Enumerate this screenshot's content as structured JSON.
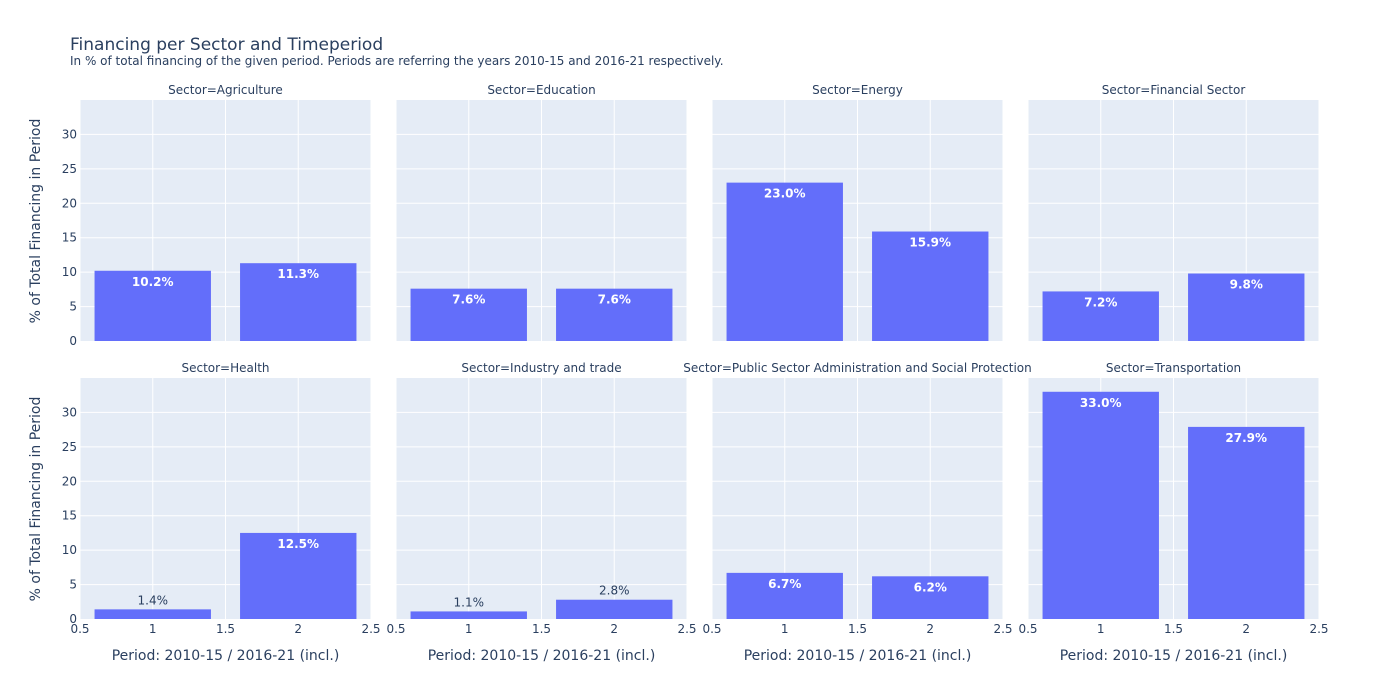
{
  "chart_data": {
    "type": "bar",
    "title": "Financing per Sector and Timeperiod",
    "subtitle": "In % of total financing of the given period. Periods are referring the years 2010-15 and 2016-21 respectively.",
    "xlabel": "Period: 2010-15 / 2016-21 (incl.)",
    "ylabel": "% of Total Financing in Period",
    "xlim": [
      0.5,
      2.5
    ],
    "ylim": [
      0,
      35
    ],
    "x_ticks": [
      "0.5",
      "1",
      "1.5",
      "2",
      "2.5"
    ],
    "y_ticks": [
      0,
      5,
      10,
      15,
      20,
      25,
      30
    ],
    "grid": true,
    "bar_color": "#636efa",
    "plot_bg": "#e5ecf6",
    "facets": [
      {
        "title": "Sector=Agriculture",
        "x": [
          1,
          2
        ],
        "values": [
          10.2,
          11.3
        ],
        "labels": [
          "10.2%",
          "11.3%"
        ]
      },
      {
        "title": "Sector=Education",
        "x": [
          1,
          2
        ],
        "values": [
          7.6,
          7.6
        ],
        "labels": [
          "7.6%",
          "7.6%"
        ]
      },
      {
        "title": "Sector=Energy",
        "x": [
          1,
          2
        ],
        "values": [
          23.0,
          15.9
        ],
        "labels": [
          "23.0%",
          "15.9%"
        ]
      },
      {
        "title": "Sector=Financial Sector",
        "x": [
          1,
          2
        ],
        "values": [
          7.2,
          9.8
        ],
        "labels": [
          "7.2%",
          "9.8%"
        ]
      },
      {
        "title": "Sector=Health",
        "x": [
          1,
          2
        ],
        "values": [
          1.4,
          12.5
        ],
        "labels": [
          "1.4%",
          "12.5%"
        ]
      },
      {
        "title": "Sector=Industry and trade",
        "x": [
          1,
          2
        ],
        "values": [
          1.1,
          2.8
        ],
        "labels": [
          "1.1%",
          "2.8%"
        ]
      },
      {
        "title": "Sector=Public Sector Administration and Social Protection",
        "x": [
          1,
          2
        ],
        "values": [
          6.7,
          6.2
        ],
        "labels": [
          "6.7%",
          "6.2%"
        ]
      },
      {
        "title": "Sector=Transportation",
        "x": [
          1,
          2
        ],
        "values": [
          33.0,
          27.9
        ],
        "labels": [
          "33.0%",
          "27.9%"
        ]
      }
    ]
  }
}
